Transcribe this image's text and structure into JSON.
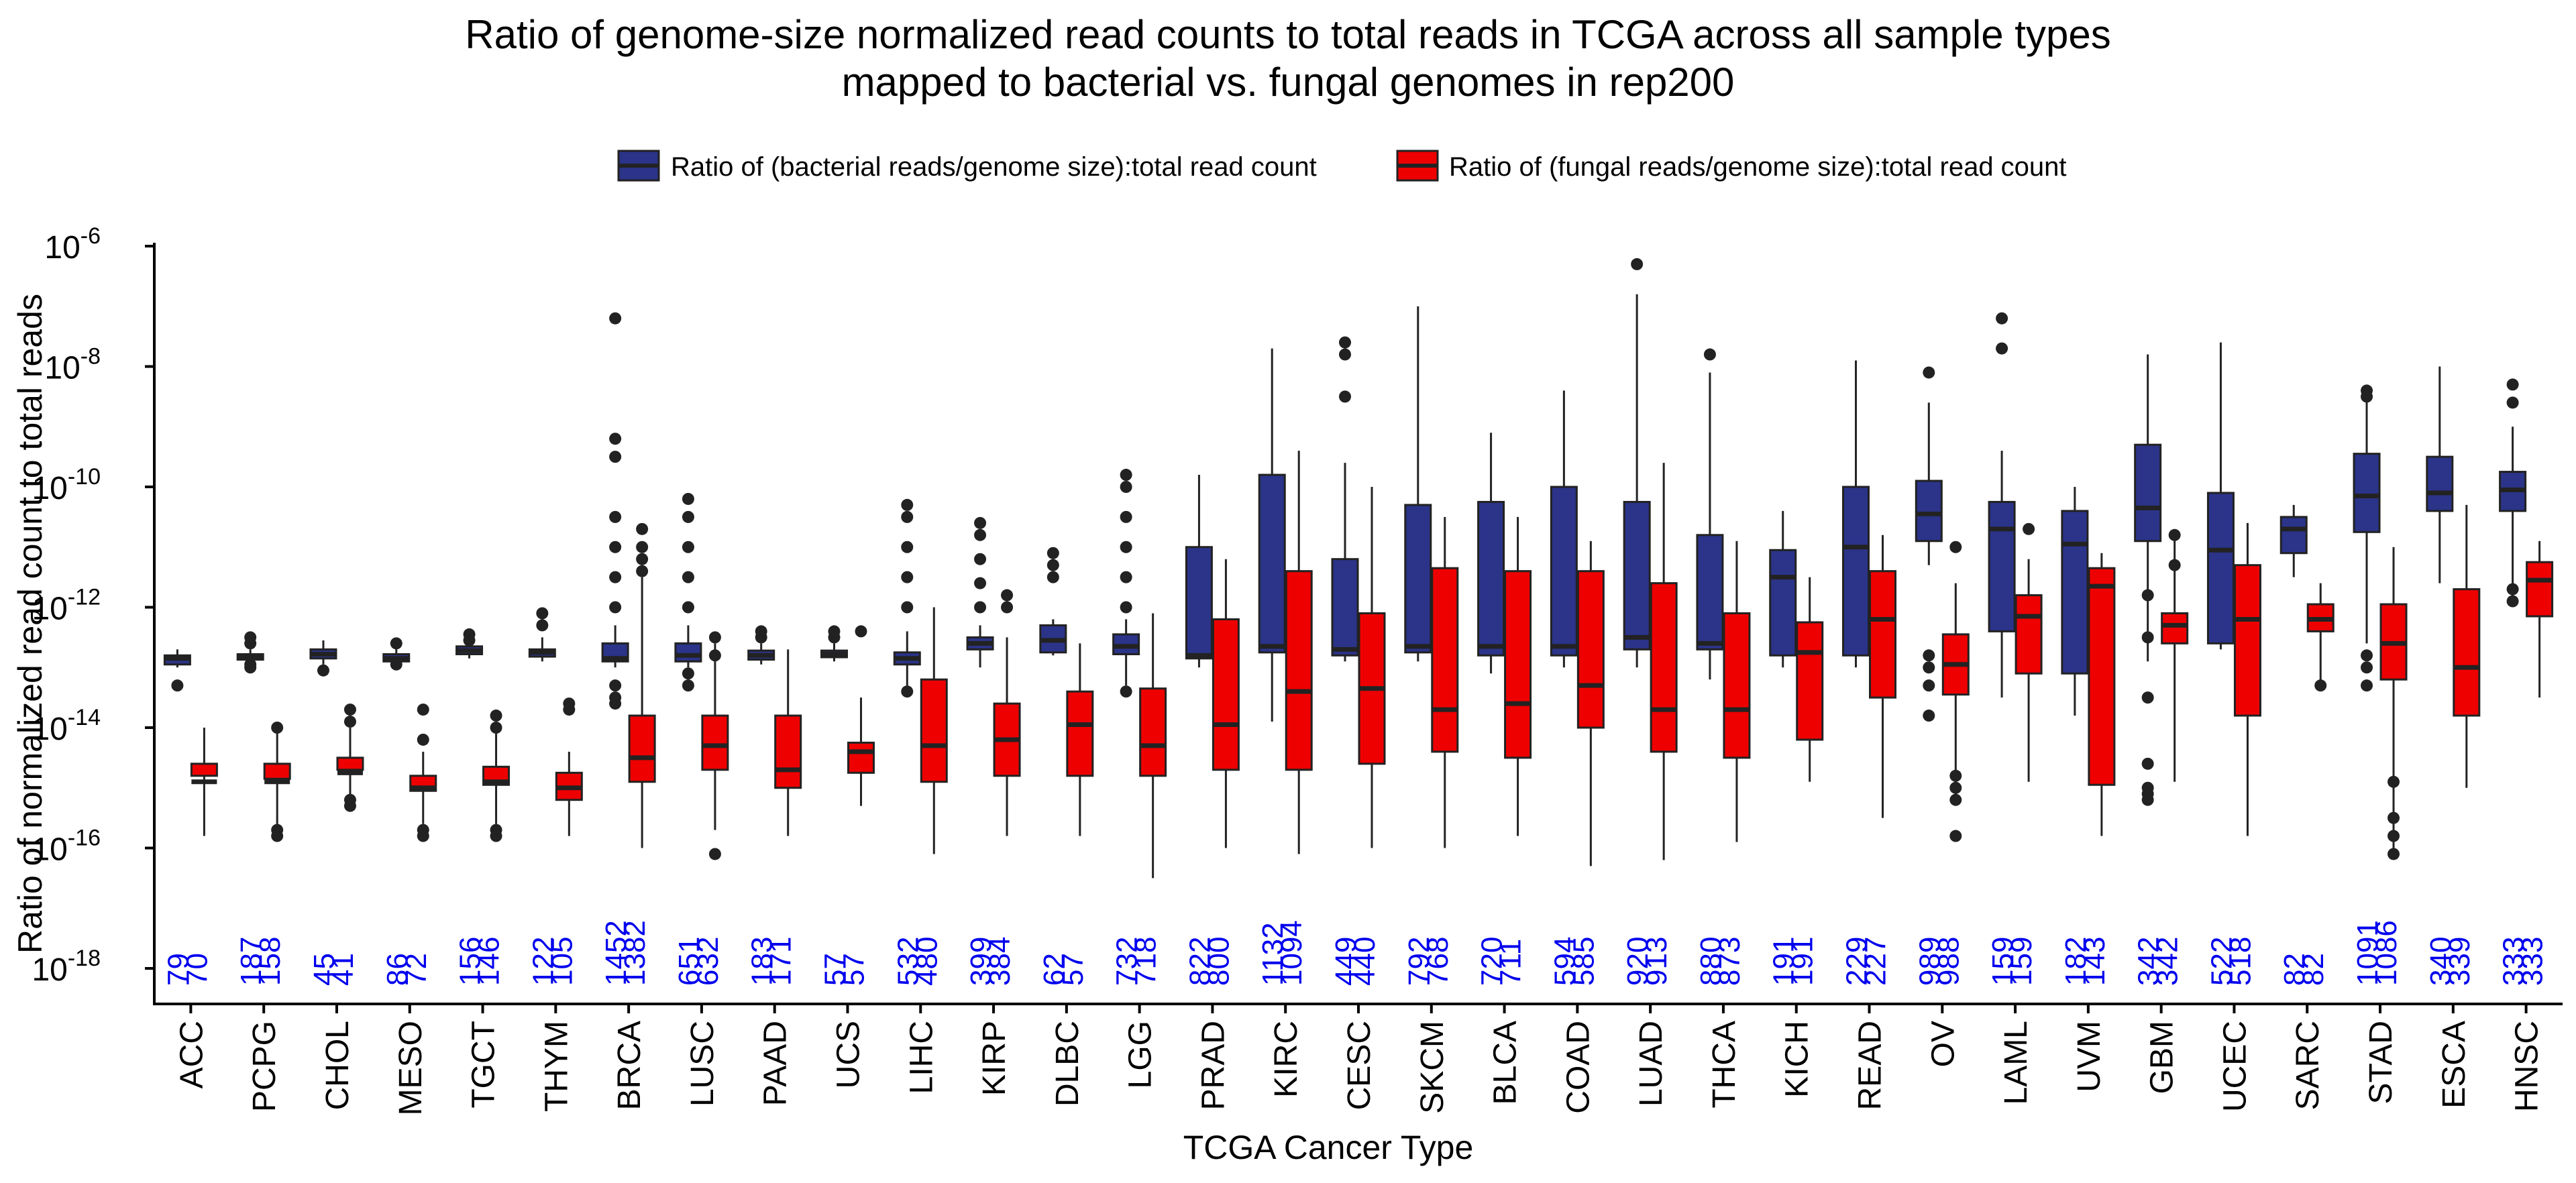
{
  "chart_data": {
    "type": "box",
    "title": "Ratio of genome-size normalized read counts to total reads in TCGA across all sample types",
    "subtitle": "mapped to bacterial vs. fungal genomes in rep200",
    "xlabel": "TCGA Cancer Type",
    "ylabel": "Ratio of normalized read count to total reads",
    "y_scale": "log10",
    "ylim_exponent": [
      -18.5,
      -5.8
    ],
    "y_ticks": [
      {
        "exp": -6,
        "base": "10",
        "power": "-6"
      },
      {
        "exp": -8,
        "base": "10",
        "power": "-8"
      },
      {
        "exp": -10,
        "base": "10",
        "power": "-10"
      },
      {
        "exp": -12,
        "base": "10",
        "power": "-12"
      },
      {
        "exp": -14,
        "base": "10",
        "power": "-14"
      },
      {
        "exp": -16,
        "base": "10",
        "power": "-16"
      },
      {
        "exp": -18,
        "base": "10",
        "power": "-18"
      }
    ],
    "legend_position": "top",
    "count_color": "#0000ee",
    "series": [
      {
        "name": "Ratio of (bacterial reads/genome size):total read count",
        "color": "#2b3489"
      },
      {
        "name": "Ratio of (fungal reads/genome size):total read count",
        "color": "#ee0000"
      }
    ],
    "categories": [
      "ACC",
      "PCPG",
      "CHOL",
      "MESO",
      "TGCT",
      "THYM",
      "BRCA",
      "LUSC",
      "PAAD",
      "UCS",
      "LIHC",
      "KIRP",
      "DLBC",
      "LGG",
      "PRAD",
      "KIRC",
      "CESC",
      "SKCM",
      "BLCA",
      "COAD",
      "LUAD",
      "THCA",
      "KICH",
      "READ",
      "OV",
      "LAML",
      "UVM",
      "GBM",
      "UCEC",
      "SARC",
      "STAD",
      "ESCA",
      "HNSC"
    ],
    "counts": [
      [
        "79",
        "70"
      ],
      [
        "187",
        "158"
      ],
      [
        "45",
        "41"
      ],
      [
        "86",
        "72"
      ],
      [
        "156",
        "146"
      ],
      [
        "122",
        "105"
      ],
      [
        "1452",
        "1382"
      ],
      [
        "651",
        "632"
      ],
      [
        "183",
        "171"
      ],
      [
        "57",
        "57"
      ],
      [
        "532",
        "480"
      ],
      [
        "399",
        "384"
      ],
      [
        "62",
        "57"
      ],
      [
        "732",
        "718"
      ],
      [
        "822",
        "800"
      ],
      [
        "1132",
        "1094"
      ],
      [
        "449",
        "440"
      ],
      [
        "792",
        "768"
      ],
      [
        "720",
        "711"
      ],
      [
        "594",
        "585"
      ],
      [
        "920",
        "913"
      ],
      [
        "880",
        "873"
      ],
      [
        "191",
        "191"
      ],
      [
        "229",
        "227"
      ],
      [
        "989",
        "988"
      ],
      [
        "159",
        "159"
      ],
      [
        "182",
        "143"
      ],
      [
        "342",
        "342"
      ],
      [
        "522",
        "518"
      ],
      [
        "82",
        "82"
      ],
      [
        "1091",
        "1086"
      ],
      [
        "340",
        "339"
      ],
      [
        "333",
        "333"
      ]
    ],
    "boxes": [
      {
        "cat": "ACC",
        "bac": [
          -13.0,
          -12.95,
          -12.85,
          -12.8,
          -12.7
        ],
        "bac_out": [
          -13.3
        ],
        "fun": [
          -15.8,
          -14.8,
          -14.9,
          -14.6,
          -14.0
        ],
        "fun_out": []
      },
      {
        "cat": "PCPG",
        "bac": [
          -12.95,
          -12.87,
          -12.82,
          -12.78,
          -12.7
        ],
        "bac_out": [
          -12.5,
          -12.6,
          -12.95,
          -13.0
        ],
        "fun": [
          -15.8,
          -14.85,
          -14.9,
          -14.6,
          -14.0
        ],
        "fun_out": [
          -15.7,
          -15.8,
          -14.0
        ]
      },
      {
        "cat": "CHOL",
        "bac": [
          -12.95,
          -12.85,
          -12.78,
          -12.7,
          -12.55
        ],
        "bac_out": [
          -13.05
        ],
        "fun": [
          -15.2,
          -14.7,
          -14.75,
          -14.5,
          -14.0
        ],
        "fun_out": [
          -15.3,
          -15.2,
          -13.7,
          -13.9
        ]
      },
      {
        "cat": "MESO",
        "bac": [
          -12.95,
          -12.9,
          -12.85,
          -12.78,
          -12.6
        ],
        "bac_out": [
          -12.6,
          -12.95
        ],
        "fun": [
          -15.6,
          -15.05,
          -15.0,
          -14.8,
          -14.4
        ],
        "fun_out": [
          -15.8,
          -15.7,
          -13.7,
          -14.2
        ]
      },
      {
        "cat": "TGCT",
        "bac": [
          -12.85,
          -12.78,
          -12.72,
          -12.65,
          -12.55
        ],
        "bac_out": [
          -12.45,
          -12.55
        ],
        "fun": [
          -15.6,
          -14.95,
          -14.9,
          -14.65,
          -14.1
        ],
        "fun_out": [
          -15.7,
          -15.8,
          -13.8,
          -14.0
        ]
      },
      {
        "cat": "THYM",
        "bac": [
          -12.9,
          -12.82,
          -12.75,
          -12.7,
          -12.5
        ],
        "bac_out": [
          -12.1,
          -12.3
        ],
        "fun": [
          -15.8,
          -15.2,
          -15.0,
          -14.75,
          -14.4
        ],
        "fun_out": [
          -13.6,
          -13.7
        ]
      },
      {
        "cat": "BRCA",
        "bac": [
          -13.0,
          -12.9,
          -12.85,
          -12.6,
          -12.3
        ],
        "bac_out": [
          -7.2,
          -9.2,
          -9.5,
          -10.5,
          -11.0,
          -11.5,
          -12.0,
          -13.5,
          -13.3,
          -13.6
        ],
        "fun": [
          -16.0,
          -14.9,
          -14.5,
          -13.8,
          -11.5
        ],
        "fun_out": [
          -10.7,
          -11.0,
          -11.2,
          -11.4
        ]
      },
      {
        "cat": "LUSC",
        "bac": [
          -13.0,
          -12.9,
          -12.8,
          -12.6,
          -12.3
        ],
        "bac_out": [
          -10.2,
          -10.5,
          -11.0,
          -11.5,
          -12.0,
          -13.1,
          -13.3
        ],
        "fun": [
          -15.7,
          -14.7,
          -14.3,
          -13.8,
          -12.6
        ],
        "fun_out": [
          -16.1,
          -12.5,
          -12.8
        ]
      },
      {
        "cat": "PAAD",
        "bac": [
          -12.95,
          -12.87,
          -12.8,
          -12.72,
          -12.6
        ],
        "bac_out": [
          -12.4,
          -12.5
        ],
        "fun": [
          -15.8,
          -15.0,
          -14.7,
          -13.8,
          -12.7
        ],
        "fun_out": []
      },
      {
        "cat": "UCS",
        "bac": [
          -12.9,
          -12.83,
          -12.78,
          -12.72,
          -12.6
        ],
        "bac_out": [
          -12.4,
          -12.5
        ],
        "fun": [
          -15.3,
          -14.75,
          -14.4,
          -14.25,
          -13.5
        ],
        "fun_out": [
          -12.4
        ]
      },
      {
        "cat": "LIHC",
        "bac": [
          -13.3,
          -12.95,
          -12.85,
          -12.75,
          -12.4
        ],
        "bac_out": [
          -10.3,
          -10.5,
          -11.0,
          -11.5,
          -12.0,
          -13.4
        ],
        "fun": [
          -16.1,
          -14.9,
          -14.3,
          -13.2,
          -12.0
        ],
        "fun_out": []
      },
      {
        "cat": "KIRP",
        "bac": [
          -13.0,
          -12.7,
          -12.6,
          -12.5,
          -12.3
        ],
        "bac_out": [
          -10.6,
          -10.8,
          -11.2,
          -11.6,
          -12.0
        ],
        "fun": [
          -15.8,
          -14.8,
          -14.2,
          -13.6,
          -12.5
        ],
        "fun_out": [
          -11.8,
          -12.0
        ]
      },
      {
        "cat": "DLBC",
        "bac": [
          -12.8,
          -12.75,
          -12.55,
          -12.3,
          -12.2
        ],
        "bac_out": [
          -11.1,
          -11.3,
          -11.5
        ],
        "fun": [
          -15.8,
          -14.8,
          -13.95,
          -13.4,
          -12.6
        ],
        "fun_out": []
      },
      {
        "cat": "LGG",
        "bac": [
          -13.3,
          -12.78,
          -12.65,
          -12.45,
          -12.2
        ],
        "bac_out": [
          -9.8,
          -10.0,
          -10.5,
          -11.0,
          -11.5,
          -12.0,
          -13.4
        ],
        "fun": [
          -16.5,
          -14.8,
          -14.3,
          -13.35,
          -12.1
        ],
        "fun_out": []
      },
      {
        "cat": "PRAD",
        "bac": [
          -13.0,
          -12.85,
          -12.8,
          -11.0,
          -9.8
        ],
        "bac_out": [],
        "fun": [
          -16.0,
          -14.7,
          -13.95,
          -12.2,
          -11.2
        ],
        "fun_out": []
      },
      {
        "cat": "KIRC",
        "bac": [
          -13.9,
          -12.75,
          -12.65,
          -9.8,
          -7.7
        ],
        "bac_out": [],
        "fun": [
          -16.1,
          -14.7,
          -13.4,
          -11.4,
          -9.4
        ],
        "fun_out": []
      },
      {
        "cat": "CESC",
        "bac": [
          -12.9,
          -12.8,
          -12.7,
          -11.2,
          -9.6
        ],
        "bac_out": [
          -7.6,
          -7.8,
          -8.5
        ],
        "fun": [
          -16.0,
          -14.6,
          -13.35,
          -12.1,
          -10.0
        ],
        "fun_out": []
      },
      {
        "cat": "SKCM",
        "bac": [
          -12.9,
          -12.75,
          -12.65,
          -10.3,
          -7.0
        ],
        "bac_out": [],
        "fun": [
          -16.0,
          -14.4,
          -13.7,
          -11.35,
          -10.5
        ],
        "fun_out": []
      },
      {
        "cat": "BLCA",
        "bac": [
          -13.1,
          -12.8,
          -12.65,
          -10.25,
          -9.1
        ],
        "bac_out": [],
        "fun": [
          -15.8,
          -14.5,
          -13.6,
          -11.4,
          -10.5
        ],
        "fun_out": []
      },
      {
        "cat": "COAD",
        "bac": [
          -13.0,
          -12.8,
          -12.65,
          -10.0,
          -8.4
        ],
        "bac_out": [],
        "fun": [
          -16.3,
          -14.0,
          -13.3,
          -11.4,
          -10.9
        ],
        "fun_out": []
      },
      {
        "cat": "LUAD",
        "bac": [
          -13.0,
          -12.7,
          -12.5,
          -10.25,
          -6.8
        ],
        "bac_out": [
          -6.3
        ],
        "fun": [
          -16.2,
          -14.4,
          -13.7,
          -11.6,
          -9.6
        ],
        "fun_out": []
      },
      {
        "cat": "THCA",
        "bac": [
          -13.2,
          -12.7,
          -12.6,
          -10.8,
          -8.1
        ],
        "bac_out": [
          -7.8
        ],
        "fun": [
          -15.9,
          -14.5,
          -13.7,
          -12.1,
          -10.9
        ],
        "fun_out": []
      },
      {
        "cat": "KICH",
        "bac": [
          -13.0,
          -12.8,
          -11.5,
          -11.05,
          -10.4
        ],
        "bac_out": [],
        "fun": [
          -14.9,
          -14.2,
          -12.75,
          -12.25,
          -11.5
        ],
        "fun_out": []
      },
      {
        "cat": "READ",
        "bac": [
          -13.0,
          -12.8,
          -11.0,
          -10.0,
          -7.9
        ],
        "bac_out": [],
        "fun": [
          -15.5,
          -13.5,
          -12.2,
          -11.4,
          -10.8
        ],
        "fun_out": []
      },
      {
        "cat": "OV",
        "bac": [
          -11.3,
          -10.9,
          -10.45,
          -9.9,
          -8.6
        ],
        "bac_out": [
          -8.1,
          -12.8,
          -13.0,
          -13.3,
          -13.8
        ],
        "fun": [
          -15.3,
          -13.45,
          -12.95,
          -12.45,
          -11.6
        ],
        "fun_out": [
          -15.8,
          -15.2,
          -15.0,
          -14.8,
          -11.0
        ]
      },
      {
        "cat": "LAML",
        "bac": [
          -13.5,
          -12.4,
          -10.7,
          -10.25,
          -9.4
        ],
        "bac_out": [
          -7.2,
          -7.7
        ],
        "fun": [
          -14.9,
          -13.1,
          -12.15,
          -11.8,
          -11.2
        ],
        "fun_out": [
          -10.7
        ]
      },
      {
        "cat": "UVM",
        "bac": [
          -13.8,
          -13.1,
          -10.95,
          -10.4,
          -10.0
        ],
        "bac_out": [],
        "fun": [
          -15.8,
          -14.95,
          -11.65,
          -11.35,
          -11.1
        ],
        "fun_out": []
      },
      {
        "cat": "GBM",
        "bac": [
          -12.9,
          -10.9,
          -10.35,
          -9.3,
          -7.8
        ],
        "bac_out": [
          -15.0,
          -15.2,
          -15.1,
          -14.6,
          -13.5,
          -12.5,
          -11.8
        ],
        "fun": [
          -14.9,
          -12.6,
          -12.3,
          -12.1,
          -10.8
        ],
        "fun_out": [
          -10.8,
          -11.3
        ]
      },
      {
        "cat": "UCEC",
        "bac": [
          -12.7,
          -12.6,
          -11.05,
          -10.1,
          -7.6
        ],
        "bac_out": [],
        "fun": [
          -15.8,
          -13.8,
          -12.2,
          -11.3,
          -10.6
        ],
        "fun_out": []
      },
      {
        "cat": "SARC",
        "bac": [
          -11.5,
          -11.1,
          -10.7,
          -10.5,
          -10.3
        ],
        "bac_out": [],
        "fun": [
          -13.3,
          -12.4,
          -12.2,
          -11.95,
          -11.6
        ],
        "fun_out": [
          -13.3
        ]
      },
      {
        "cat": "STAD",
        "bac": [
          -12.6,
          -10.75,
          -10.15,
          -9.45,
          -8.5
        ],
        "bac_out": [
          -8.4,
          -8.5,
          -12.8,
          -13.0,
          -13.3
        ],
        "fun": [
          -16.1,
          -13.2,
          -12.6,
          -11.95,
          -11.0
        ],
        "fun_out": [
          -14.9,
          -15.5,
          -15.8,
          -16.1
        ]
      },
      {
        "cat": "ESCA",
        "bac": [
          -11.6,
          -10.4,
          -10.1,
          -9.5,
          -8.0
        ],
        "bac_out": [],
        "fun": [
          -15.0,
          -13.8,
          -13.0,
          -11.7,
          -10.3
        ],
        "fun_out": []
      },
      {
        "cat": "HNSC",
        "bac": [
          -11.9,
          -10.4,
          -10.05,
          -9.75,
          -9.0
        ],
        "bac_out": [
          -8.3,
          -8.6,
          -11.7,
          -11.9
        ],
        "fun": [
          -13.5,
          -12.15,
          -11.55,
          -11.25,
          -10.9
        ],
        "fun_out": []
      }
    ]
  }
}
